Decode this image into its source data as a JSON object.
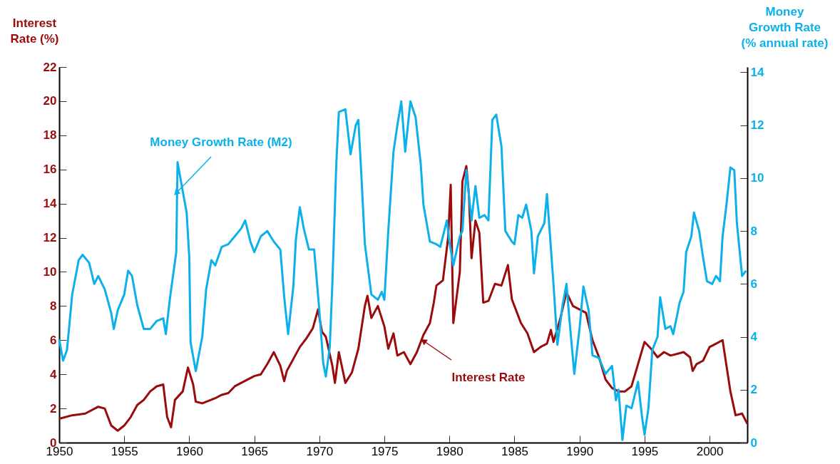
{
  "chart_data": {
    "type": "line",
    "ylabel": "Interest Rate (%)",
    "y2label": "Money Growth Rate (% annual rate)",
    "xlim": [
      1950,
      2002.9
    ],
    "xticks": [
      1950,
      1955,
      1960,
      1965,
      1970,
      1975,
      1980,
      1985,
      1990,
      1995,
      2000
    ],
    "ylim": [
      0,
      22
    ],
    "yticks": [
      0,
      2,
      4,
      6,
      8,
      10,
      12,
      14,
      16,
      18,
      20,
      22
    ],
    "y2lim": [
      0,
      14.2
    ],
    "y2ticks": [
      0,
      2,
      4,
      6,
      8,
      10,
      12,
      14
    ],
    "grid": false,
    "legend": false,
    "series": [
      {
        "name": "Interest Rate",
        "color": "#9a0b0b",
        "x": [
          1950,
          1951,
          1952,
          1953,
          1953.5,
          1954,
          1954.5,
          1955,
          1955.5,
          1956,
          1956.5,
          1957,
          1957.5,
          1958,
          1958.3,
          1958.6,
          1958.9,
          1959.5,
          1959.9,
          1960.3,
          1960.5,
          1961,
          1962,
          1962.5,
          1963,
          1963.5,
          1964,
          1965,
          1965.5,
          1966,
          1966.5,
          1967,
          1967.3,
          1967.5,
          1968,
          1968.5,
          1969,
          1969.5,
          1969.9,
          1970.2,
          1970.5,
          1971,
          1971.2,
          1971.5,
          1972,
          1972.5,
          1973,
          1973.5,
          1973.7,
          1974,
          1974.5,
          1975,
          1975.3,
          1975.7,
          1976,
          1976.5,
          1977,
          1977.5,
          1978,
          1978.5,
          1978.8,
          1979,
          1979.5,
          1979.9,
          1980.1,
          1980.3,
          1980.8,
          1981,
          1981.3,
          1981.5,
          1981.7,
          1982,
          1982.3,
          1982.6,
          1983,
          1983.5,
          1984,
          1984.5,
          1984.8,
          1985,
          1985.5,
          1986,
          1986.5,
          1987,
          1987.5,
          1987.8,
          1988,
          1988.5,
          1989,
          1989.5,
          1990,
          1990.5,
          1991,
          1991.5,
          1992,
          1992.5,
          1993,
          1993.5,
          1994,
          1994.5,
          1995,
          1995.5,
          1996,
          1996.5,
          1997,
          1997.5,
          1998,
          1998.5,
          1998.7,
          1999,
          1999.5,
          2000,
          2000.5,
          2001,
          2001.3,
          2001.6,
          2002,
          2002.5,
          2002.9
        ],
        "values": [
          1.4,
          1.6,
          1.7,
          2.1,
          2.0,
          1.0,
          0.7,
          1.0,
          1.5,
          2.2,
          2.5,
          3.0,
          3.3,
          3.4,
          1.5,
          0.9,
          2.5,
          3.0,
          4.4,
          3.4,
          2.4,
          2.3,
          2.6,
          2.8,
          2.9,
          3.3,
          3.5,
          3.9,
          4.0,
          4.6,
          5.3,
          4.5,
          3.6,
          4.2,
          4.9,
          5.6,
          6.1,
          6.7,
          7.8,
          6.5,
          6.2,
          4.5,
          3.5,
          5.3,
          3.5,
          4.1,
          5.5,
          8.0,
          8.6,
          7.3,
          8.0,
          6.8,
          5.5,
          6.4,
          5.1,
          5.3,
          4.6,
          5.3,
          6.3,
          7.0,
          8.2,
          9.2,
          9.5,
          12,
          15.1,
          7.0,
          10,
          15.3,
          16.2,
          14.5,
          10.8,
          13,
          12.3,
          8.2,
          8.3,
          9.3,
          9.2,
          10.4,
          8.4,
          8.0,
          7.0,
          6.4,
          5.3,
          5.6,
          5.8,
          6.6,
          5.9,
          7.2,
          8.8,
          8.0,
          7.8,
          7.6,
          6.0,
          5.0,
          3.7,
          3.2,
          3.0,
          3.0,
          3.3,
          4.6,
          5.9,
          5.5,
          5.0,
          5.3,
          5.1,
          5.2,
          5.3,
          5.0,
          4.2,
          4.6,
          4.8,
          5.6,
          5.8,
          6.0,
          4.5,
          3.0,
          1.6,
          1.7,
          1.1
        ]
      },
      {
        "name": "Money Growth Rate (M2)",
        "color": "#0cb0ea",
        "axis": "y2",
        "x": [
          1950,
          1950.3,
          1950.6,
          1951,
          1951.5,
          1951.8,
          1952.3,
          1952.7,
          1953,
          1953.5,
          1954,
          1954.2,
          1954.5,
          1955,
          1955.3,
          1955.6,
          1956,
          1956.5,
          1957,
          1957.5,
          1958,
          1958.2,
          1958.5,
          1959,
          1959.1,
          1959.5,
          1959.8,
          1960,
          1960.1,
          1960.5,
          1961,
          1961.3,
          1961.7,
          1962,
          1962.5,
          1963,
          1963.5,
          1964,
          1964.3,
          1964.7,
          1965,
          1965.5,
          1966,
          1966.5,
          1967,
          1967.3,
          1967.6,
          1968,
          1968.2,
          1968.5,
          1968.8,
          1969.2,
          1969.6,
          1970,
          1970.3,
          1970.5,
          1970.8,
          1971,
          1971.3,
          1971.5,
          1972,
          1972.4,
          1972.8,
          1973,
          1973.2,
          1973.5,
          1974,
          1974.5,
          1974.8,
          1975,
          1975.3,
          1975.7,
          1976,
          1976.3,
          1976.6,
          1977,
          1977.4,
          1977.8,
          1978,
          1978.5,
          1979,
          1979.3,
          1979.8,
          1980,
          1980.3,
          1980.8,
          1981,
          1981.3,
          1981.7,
          1982,
          1982.3,
          1982.7,
          1983,
          1983.3,
          1983.6,
          1984,
          1984.3,
          1984.8,
          1985,
          1985.3,
          1985.6,
          1985.9,
          1986.3,
          1986.5,
          1986.8,
          1987.3,
          1987.5,
          1988,
          1988.3,
          1988.7,
          1989,
          1989.2,
          1989.6,
          1990,
          1990.3,
          1990.7,
          1991,
          1991.5,
          1992,
          1992.5,
          1992.8,
          1993,
          1993.3,
          1993.6,
          1994,
          1994.5,
          1994.8,
          1995,
          1995.3,
          1995.6,
          1996,
          1996.2,
          1996.6,
          1997,
          1997.2,
          1997.5,
          1997.7,
          1998,
          1998.2,
          1998.6,
          1998.8,
          1999.2,
          1999.5,
          1999.8,
          2000.2,
          2000.5,
          2000.8,
          2001,
          2001.3,
          2001.6,
          2001.9,
          2002.1,
          2002.5,
          2002.8
        ],
        "values": [
          3.9,
          3.1,
          3.5,
          5.6,
          6.9,
          7.1,
          6.8,
          6.0,
          6.3,
          5.8,
          4.9,
          4.3,
          5.0,
          5.6,
          6.5,
          6.3,
          5.2,
          4.3,
          4.3,
          4.6,
          4.7,
          4.1,
          5.4,
          7.2,
          10.6,
          9.5,
          8.7,
          7.0,
          3.8,
          2.7,
          4.0,
          5.8,
          6.9,
          6.7,
          7.4,
          7.5,
          7.8,
          8.1,
          8.4,
          7.6,
          7.2,
          7.8,
          8.0,
          7.6,
          7.3,
          5.5,
          4.1,
          5.9,
          7.7,
          8.9,
          8.1,
          7.3,
          7.3,
          5.0,
          3.0,
          2.5,
          3.6,
          6.0,
          10.5,
          12.5,
          12.6,
          10.9,
          12.0,
          12.2,
          10.4,
          7.5,
          5.6,
          5.4,
          5.7,
          5.4,
          8.0,
          11.0,
          12.0,
          12.9,
          11.0,
          12.9,
          12.3,
          10.5,
          9.0,
          7.6,
          7.5,
          7.4,
          8.4,
          7.6,
          6.7,
          7.8,
          8.0,
          10.3,
          8.4,
          9.7,
          8.5,
          8.6,
          8.4,
          12.2,
          12.4,
          11.2,
          8.0,
          7.6,
          7.5,
          8.6,
          8.5,
          9.0,
          8.0,
          6.4,
          7.8,
          8.3,
          9.4,
          6.0,
          3.7,
          5.2,
          6.0,
          4.8,
          2.6,
          4.3,
          5.9,
          5.0,
          3.3,
          3.2,
          2.6,
          2.9,
          1.6,
          2.0,
          0.1,
          1.4,
          1.3,
          2.3,
          1.0,
          0.3,
          1.3,
          3.5,
          4.0,
          5.5,
          4.3,
          4.4,
          4.1,
          4.8,
          5.3,
          5.7,
          7.2,
          7.8,
          8.7,
          8.0,
          7.0,
          6.1,
          6.0,
          6.3,
          6.1,
          7.8,
          9.0,
          10.4,
          10.3,
          8.3,
          6.3,
          6.5
        ]
      }
    ]
  }
}
